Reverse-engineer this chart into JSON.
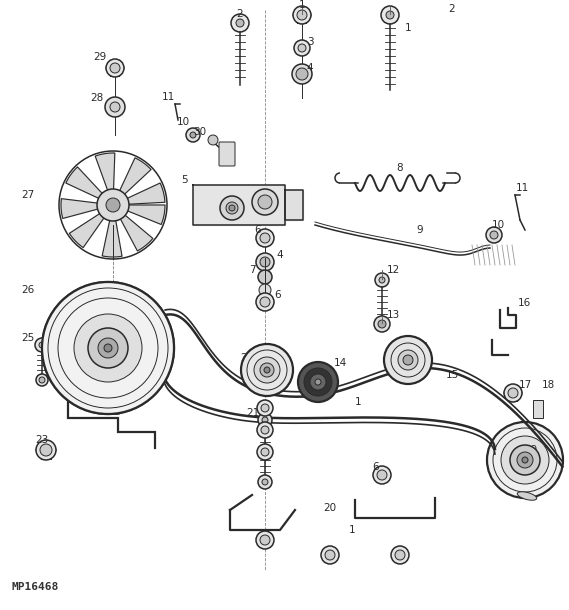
{
  "bg_color": "#ffffff",
  "line_color": "#2a2a2a",
  "watermark": "MP16468",
  "fig_width": 5.69,
  "fig_height": 6.1,
  "dpi": 100
}
